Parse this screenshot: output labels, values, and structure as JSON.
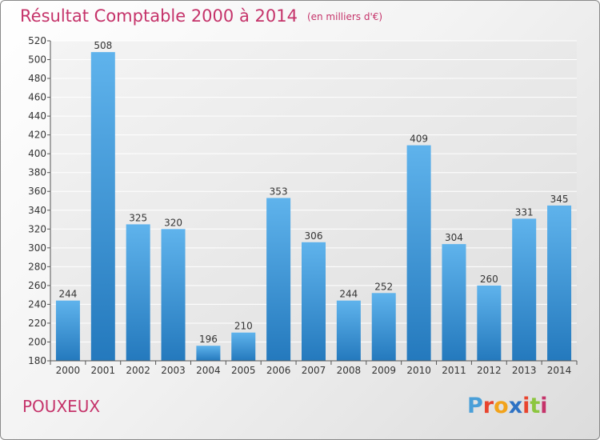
{
  "chart_data": {
    "type": "bar",
    "title": "Résultat Comptable 2000 à 2014",
    "unit": "(en milliers d'€)",
    "categories": [
      "2000",
      "2001",
      "2002",
      "2003",
      "2004",
      "2005",
      "2006",
      "2007",
      "2008",
      "2009",
      "2010",
      "2011",
      "2012",
      "2013",
      "2014"
    ],
    "values": [
      244,
      508,
      325,
      320,
      196,
      210,
      353,
      306,
      244,
      252,
      409,
      304,
      260,
      331,
      345
    ],
    "ylim": [
      180,
      520
    ],
    "ytick_step": 20,
    "grid": true,
    "xlabel": "",
    "ylabel": ""
  },
  "footer": {
    "commune": "POUXEUX",
    "logo": {
      "letters": [
        "P",
        "r",
        "o",
        "x",
        "i",
        "t",
        "i"
      ],
      "colors": [
        "#4a9fd8",
        "#e8442e",
        "#f2a31b",
        "#2e72c4",
        "#e8442e",
        "#8cc63f",
        "#c5336a"
      ]
    }
  },
  "colors": {
    "bar_top": "#5fb3ec",
    "bar_bottom": "#2479bd",
    "title": "#c5336a"
  }
}
